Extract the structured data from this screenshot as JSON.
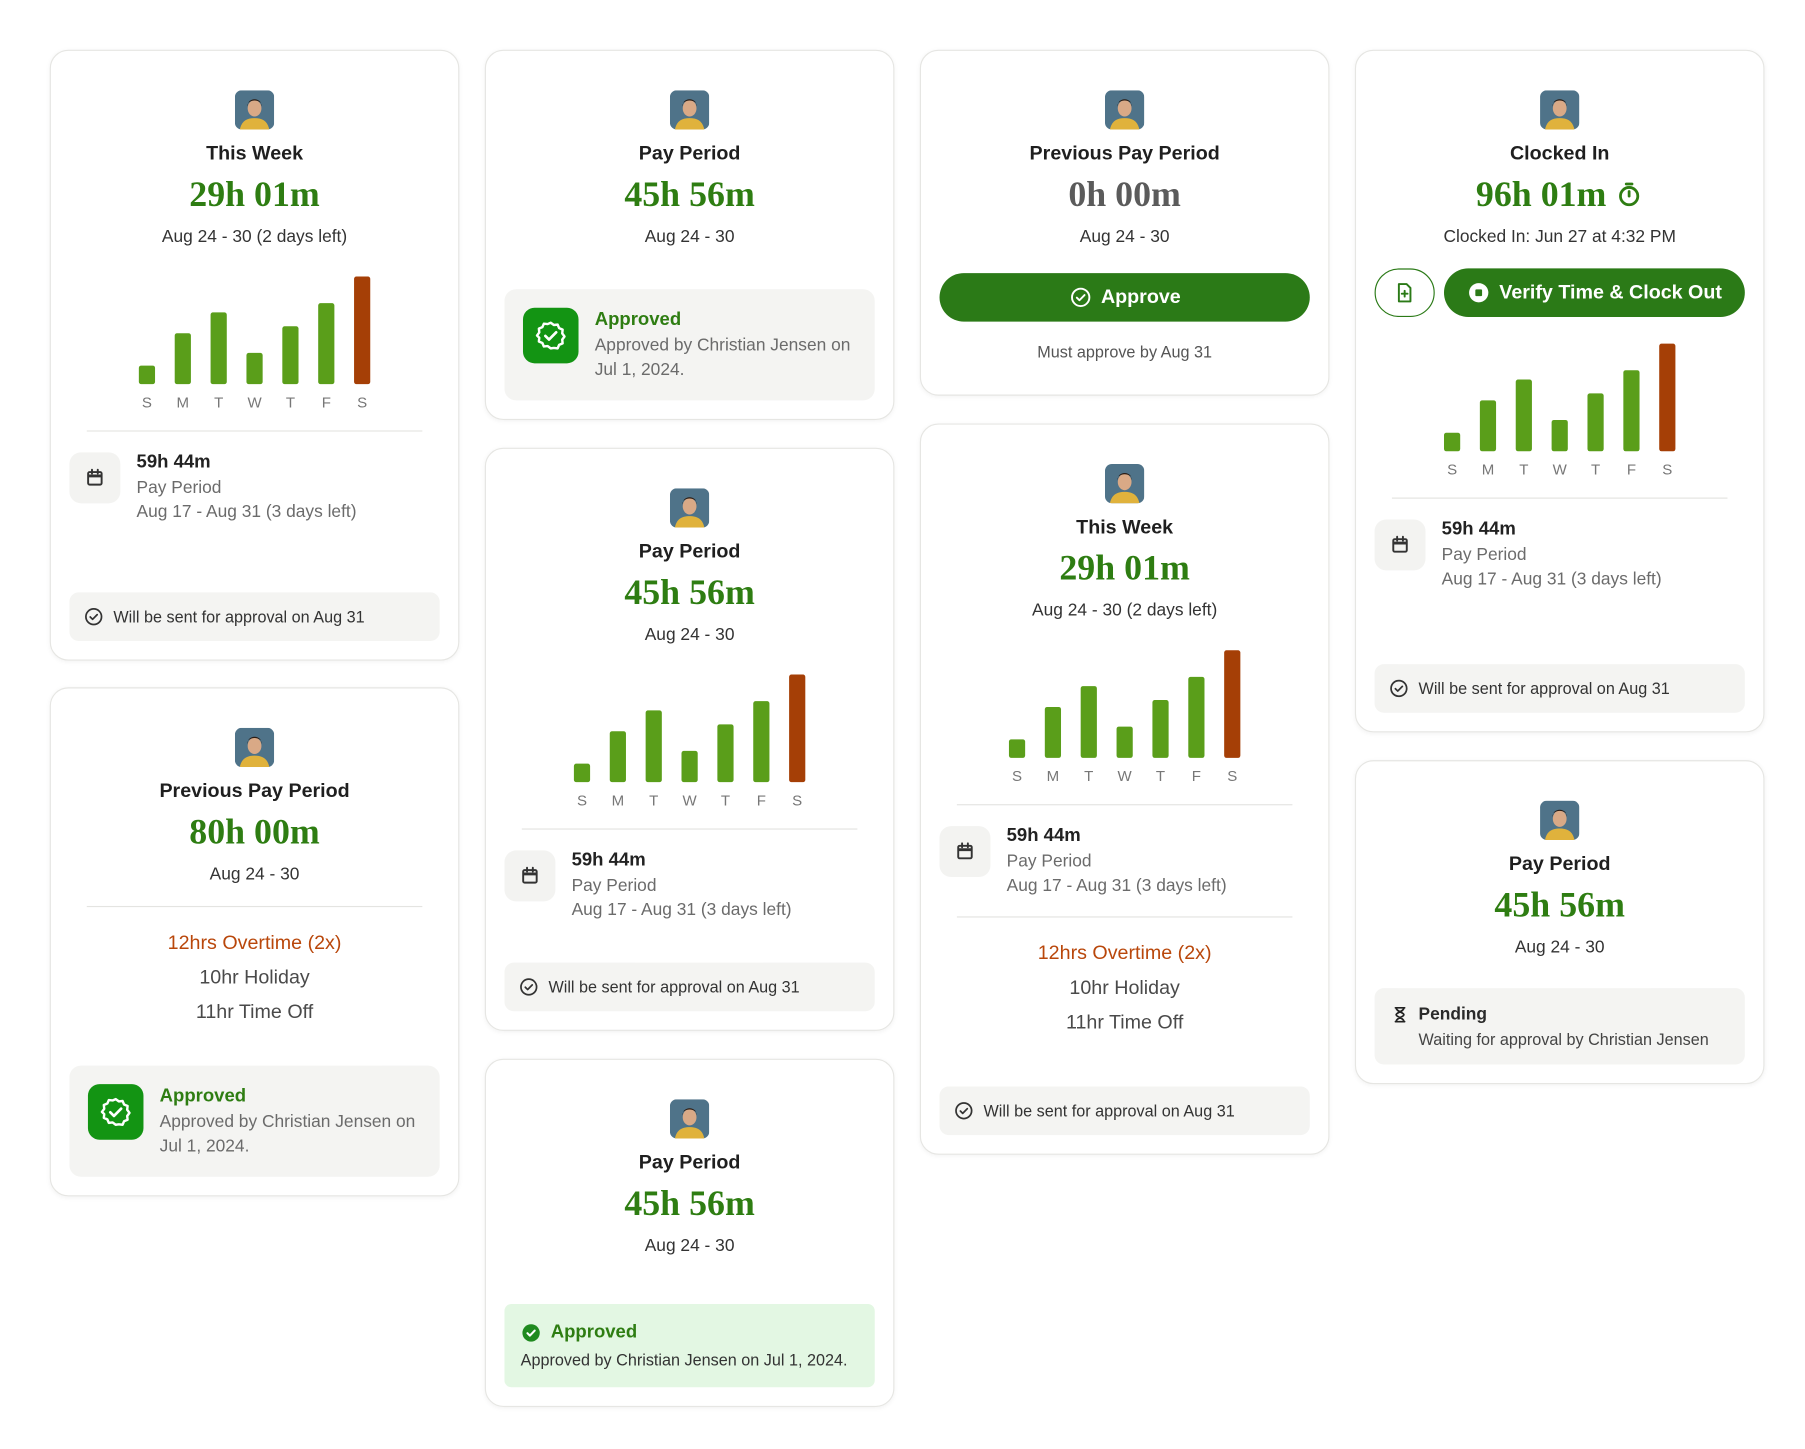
{
  "cards": [
    {
      "title": "This Week",
      "total": "29h 01m",
      "total_color": "#2e7d12",
      "range": "Aug 24 - 30 (2 days left)",
      "chart": {
        "days": [
          "S",
          "M",
          "T",
          "W",
          "T",
          "F",
          "S"
        ],
        "values": [
          1.6,
          4.4,
          6.2,
          2.7,
          5,
          7,
          9.3
        ],
        "color": "#5a9e1a",
        "last_color": "#a53f06"
      },
      "summary": {
        "hours": "59h 44m",
        "label": "Pay Period",
        "range": "Aug 17 - Aug 31 (3 days left)"
      },
      "status": {
        "kind": "note",
        "text": "Will be sent for approval on Aug 31"
      }
    },
    {
      "title": "Previous Pay Period",
      "total": "80h 00m",
      "total_color": "#2e7d12",
      "range": "Aug 24 - 30",
      "breakdown": [
        "12hrs Overtime (2x)",
        "10hr Holiday",
        "11hr Time Off"
      ],
      "status": {
        "kind": "approved-card",
        "title": "Approved",
        "text": "Approved by Christian Jensen on Jul 1, 2024."
      }
    },
    {
      "title": "Pay Period",
      "total": "45h 56m",
      "total_color": "#2e7d12",
      "range": "Aug 24 - 30",
      "status": {
        "kind": "approved-card",
        "title": "Approved",
        "text": "Approved by Christian Jensen on Jul 1, 2024."
      }
    },
    {
      "title": "Pay Period",
      "total": "45h 56m",
      "total_color": "#2e7d12",
      "range": "Aug 24 - 30",
      "chart": {
        "days": [
          "S",
          "M",
          "T",
          "W",
          "T",
          "F",
          "S"
        ],
        "values": [
          1.6,
          4.4,
          6.2,
          2.7,
          5,
          7,
          9.3
        ],
        "color": "#5a9e1a",
        "last_color": "#a53f06"
      },
      "summary": {
        "hours": "59h 44m",
        "label": "Pay Period",
        "range": "Aug 17 - Aug 31 (3 days left)"
      },
      "status": {
        "kind": "note",
        "text": "Will be sent for approval on Aug 31"
      }
    },
    {
      "title": "Pay Period",
      "total": "45h 56m",
      "total_color": "#2e7d12",
      "range": "Aug 24 - 30",
      "status": {
        "kind": "approved-banner",
        "title": "Approved",
        "text": "Approved by Christian Jensen on Jul 1, 2024."
      }
    },
    {
      "title": "Previous Pay Period",
      "total": "0h 00m",
      "total_color": "#5b5b5b",
      "range": "Aug 24 - 30",
      "button": {
        "label": "Approve",
        "icon": "check"
      },
      "deadline": "Must approve by Aug 31"
    },
    {
      "title": "This Week",
      "total": "29h 01m",
      "total_color": "#2e7d12",
      "range": "Aug 24 - 30 (2 days left)",
      "chart": {
        "days": [
          "S",
          "M",
          "T",
          "W",
          "T",
          "F",
          "S"
        ],
        "values": [
          1.6,
          4.4,
          6.2,
          2.7,
          5,
          7,
          9.3
        ],
        "color": "#5a9e1a",
        "last_color": "#a53f06"
      },
      "summary": {
        "hours": "59h 44m",
        "label": "Pay Period",
        "range": "Aug 17 - Aug 31 (3 days left)"
      },
      "breakdown": [
        "12hrs Overtime (2x)",
        "10hr Holiday",
        "11hr Time Off"
      ],
      "status": {
        "kind": "note",
        "text": "Will be sent for approval on Aug 31"
      }
    },
    {
      "title": "Clocked In",
      "total": "96h 01m",
      "total_color": "#2e7d12",
      "timer_icon": true,
      "range": "Clocked In: Jun 27 at 4:32 PM",
      "button": {
        "label": "Verify Time & Clock Out",
        "icon": "stop",
        "secondary_icon": "file"
      },
      "chart": {
        "days": [
          "S",
          "M",
          "T",
          "W",
          "T",
          "F",
          "S"
        ],
        "values": [
          1.6,
          4.4,
          6.2,
          2.7,
          5,
          7,
          9.3
        ],
        "color": "#5a9e1a",
        "last_color": "#a53f06"
      },
      "summary": {
        "hours": "59h 44m",
        "label": "Pay Period",
        "range": "Aug 17 - Aug 31 (3 days left)"
      },
      "status": {
        "kind": "note",
        "text": "Will be sent for approval on Aug 31"
      }
    },
    {
      "title": "Pay Period",
      "total": "45h 56m",
      "total_color": "#2e7d12",
      "range": "Aug 24 - 30",
      "status": {
        "kind": "pending",
        "title": "Pending",
        "text": "Waiting for approval by Christian Jensen"
      }
    }
  ]
}
